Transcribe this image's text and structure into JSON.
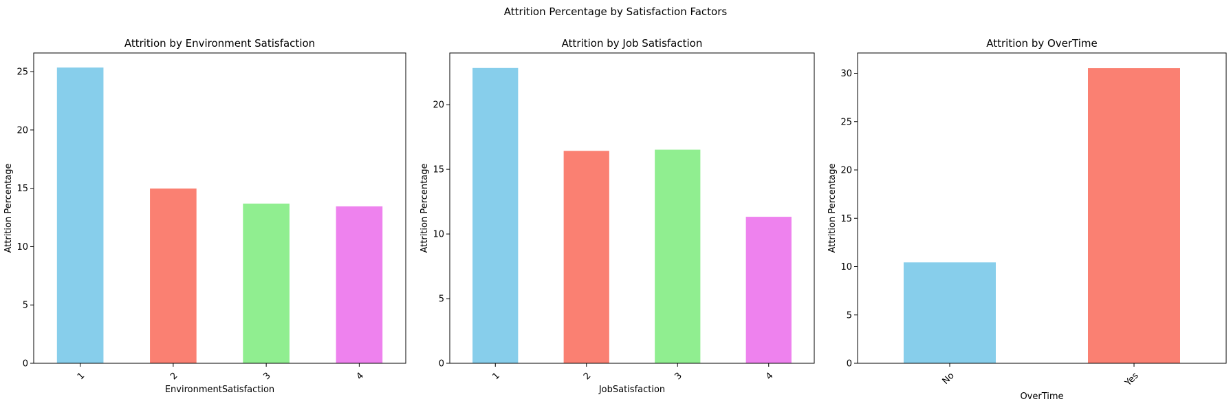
{
  "figure": {
    "suptitle": "Attrition Percentage by Satisfaction Factors"
  },
  "colors": {
    "bars": [
      "#87CEEB",
      "#FA8072",
      "#90EE90",
      "#EE82EE"
    ],
    "axis": "#000000"
  },
  "chart_data": [
    {
      "type": "bar",
      "title": "Attrition by Environment Satisfaction",
      "xlabel": "EnvironmentSatisfaction",
      "ylabel": "Attrition Percentage",
      "categories": [
        "1",
        "2",
        "3",
        "4"
      ],
      "values": [
        25.35,
        14.98,
        13.69,
        13.45
      ],
      "ylim": [
        0,
        26.6
      ],
      "yticks": [
        0,
        5,
        10,
        15,
        20,
        25
      ],
      "xtick_rotation": 45,
      "grid": false
    },
    {
      "type": "bar",
      "title": "Attrition by Job Satisfaction",
      "xlabel": "JobSatisfaction",
      "ylabel": "Attrition Percentage",
      "categories": [
        "1",
        "2",
        "3",
        "4"
      ],
      "values": [
        22.84,
        16.43,
        16.52,
        11.33
      ],
      "ylim": [
        0,
        24.0
      ],
      "yticks": [
        0,
        5,
        10,
        15,
        20
      ],
      "xtick_rotation": 45,
      "grid": false
    },
    {
      "type": "bar",
      "title": "Attrition by OverTime",
      "xlabel": "OverTime",
      "ylabel": "Attrition Percentage",
      "categories": [
        "No",
        "Yes"
      ],
      "values": [
        10.44,
        30.53
      ],
      "ylim": [
        0,
        32.1
      ],
      "yticks": [
        0,
        5,
        10,
        15,
        20,
        25,
        30
      ],
      "xtick_rotation": 45,
      "grid": false
    }
  ]
}
